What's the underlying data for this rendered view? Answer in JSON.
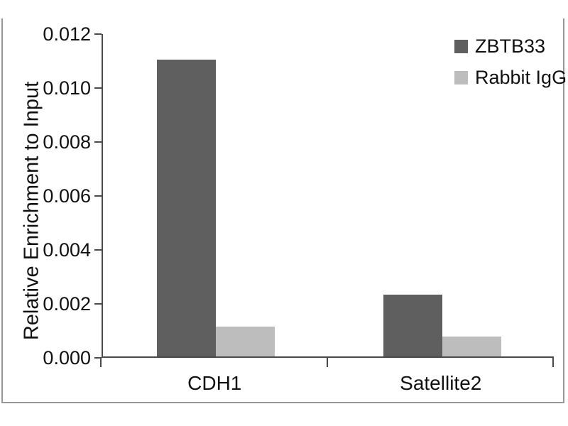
{
  "chart_data": {
    "type": "bar",
    "ylabel": "Relative Enrichment to Input",
    "xlabel": "",
    "categories": [
      "CDH1",
      "Satellite2"
    ],
    "series": [
      {
        "name": "ZBTB33",
        "color": "#5f5f5f",
        "values": [
          0.011,
          0.0023
        ]
      },
      {
        "name": "Rabbit IgG",
        "color": "#bdbdbd",
        "values": [
          0.0011,
          0.00075
        ]
      }
    ],
    "ylim": [
      0,
      0.012
    ],
    "ytick_step": 0.002,
    "ytick_labels": [
      "0.000",
      "0.002",
      "0.004",
      "0.006",
      "0.008",
      "0.010",
      "0.012"
    ],
    "grid": false,
    "legend_position": "top-right",
    "frame_color": "#979797",
    "axis_color": "#4a4a4a"
  }
}
